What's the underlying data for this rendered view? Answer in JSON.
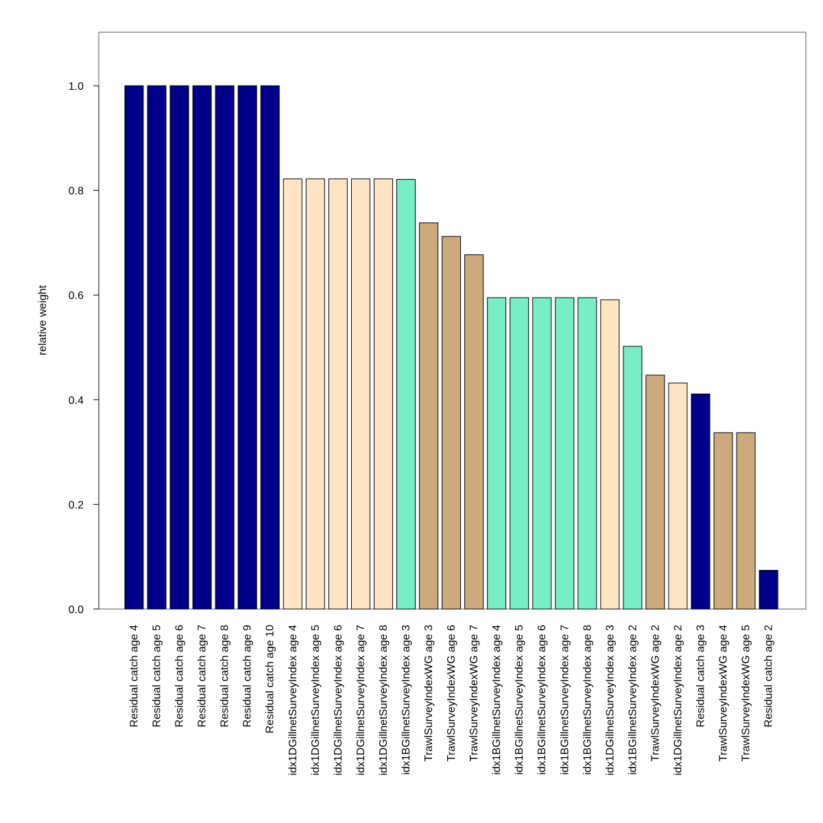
{
  "chart_data": {
    "type": "bar",
    "title": "",
    "xlabel": "",
    "ylabel": "relative weight",
    "ylim": [
      0,
      1.1
    ],
    "yticks": [
      "0.0",
      "0.2",
      "0.4",
      "0.6",
      "0.8",
      "1.0"
    ],
    "grid": false,
    "categories": [
      "Residual catch age 4",
      "Residual catch age 5",
      "Residual catch age 6",
      "Residual catch age 7",
      "Residual catch age 8",
      "Residual catch age 9",
      "Residual catch age 10",
      "idx1DGillnetSurveyIndex age 4",
      "idx1DGillnetSurveyIndex age 5",
      "idx1DGillnetSurveyIndex age 6",
      "idx1DGillnetSurveyIndex age 7",
      "idx1DGillnetSurveyIndex age 8",
      "idx1BGillnetSurveyIndex age 3",
      "TrawlSurveyIndexWG age 3",
      "TrawlSurveyIndexWG age 6",
      "TrawlSurveyIndexWG age 7",
      "idx1BGillnetSurveyIndex age 4",
      "idx1BGillnetSurveyIndex age 5",
      "idx1BGillnetSurveyIndex age 6",
      "idx1BGillnetSurveyIndex age 7",
      "idx1BGillnetSurveyIndex age 8",
      "idx1DGillnetSurveyIndex age 3",
      "idx1BGillnetSurveyIndex age 2",
      "TrawlSurveyIndexWG age 2",
      "idx1DGillnetSurveyIndex age 2",
      "Residual catch age 3",
      "TrawlSurveyIndexWG age 4",
      "TrawlSurveyIndexWG age 5",
      "Residual catch age 2"
    ],
    "values": [
      1.0,
      1.0,
      1.0,
      1.0,
      1.0,
      1.0,
      1.0,
      0.822,
      0.822,
      0.822,
      0.822,
      0.822,
      0.821,
      0.738,
      0.712,
      0.677,
      0.595,
      0.595,
      0.595,
      0.595,
      0.595,
      0.591,
      0.502,
      0.447,
      0.432,
      0.411,
      0.337,
      0.337,
      0.074
    ],
    "groups": [
      "Residual catch",
      "Residual catch",
      "Residual catch",
      "Residual catch",
      "Residual catch",
      "Residual catch",
      "Residual catch",
      "idx1DGillnetSurveyIndex",
      "idx1DGillnetSurveyIndex",
      "idx1DGillnetSurveyIndex",
      "idx1DGillnetSurveyIndex",
      "idx1DGillnetSurveyIndex",
      "idx1BGillnetSurveyIndex",
      "TrawlSurveyIndexWG",
      "TrawlSurveyIndexWG",
      "TrawlSurveyIndexWG",
      "idx1BGillnetSurveyIndex",
      "idx1BGillnetSurveyIndex",
      "idx1BGillnetSurveyIndex",
      "idx1BGillnetSurveyIndex",
      "idx1BGillnetSurveyIndex",
      "idx1DGillnetSurveyIndex",
      "idx1BGillnetSurveyIndex",
      "TrawlSurveyIndexWG",
      "idx1DGillnetSurveyIndex",
      "Residual catch",
      "TrawlSurveyIndexWG",
      "TrawlSurveyIndexWG",
      "Residual catch"
    ],
    "group_colors": {
      "Residual catch": "#00008B",
      "idx1DGillnetSurveyIndex": "#FFE4C4",
      "idx1BGillnetSurveyIndex": "#76EEC6",
      "TrawlSurveyIndexWG": "#CDAA7D"
    },
    "bar_border_color": "#000000"
  }
}
